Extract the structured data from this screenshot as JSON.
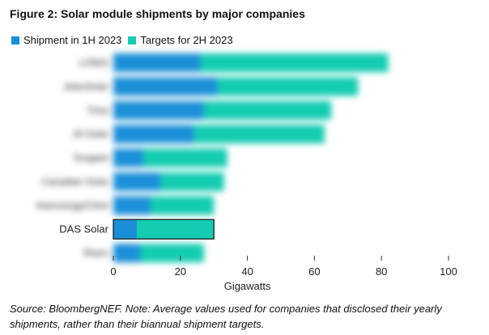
{
  "figure": {
    "title": "Figure 2:  Solar module shipments by major companies",
    "source": "Source: BloombergNEF. Note: Average values used for companies that disclosed their yearly shipments, rather than their biannual shipment targets."
  },
  "legend": {
    "items": [
      {
        "label": "Shipment in 1H 2023",
        "color": "#1a8fd8"
      },
      {
        "label": "Targets for 2H 2023",
        "color": "#13ccb1"
      }
    ]
  },
  "chart_data": {
    "type": "bar",
    "orientation": "horizontal",
    "stacked": true,
    "categories": [
      "LONGi",
      "JinkoSolar",
      "Trina",
      "JA Solar",
      "Tongwei",
      "Canadian Solar",
      "Astronergy/Chint",
      "DAS Solar",
      "Risen"
    ],
    "highlighted_category": "DAS Solar",
    "blurred_categories": [
      "LONGi",
      "JinkoSolar",
      "Trina",
      "JA Solar",
      "Tongwei",
      "Canadian Solar",
      "Astronergy/Chint",
      "Risen"
    ],
    "series": [
      {
        "name": "Shipment in 1H 2023",
        "values": [
          26,
          31,
          27,
          24,
          9,
          14,
          11,
          7,
          8
        ]
      },
      {
        "name": "Targets for 2H 2023",
        "values": [
          56,
          42,
          38,
          39,
          25,
          19,
          19,
          23,
          19
        ]
      }
    ],
    "xlabel": "Gigawatts",
    "ylabel": "",
    "xlim": [
      0,
      100
    ],
    "xticks": [
      0,
      20,
      40,
      60,
      80,
      100
    ],
    "colors": {
      "series1": "#1a8fd8",
      "series2": "#13ccb1",
      "outline": "#111111"
    },
    "legend_position": "top-left"
  }
}
